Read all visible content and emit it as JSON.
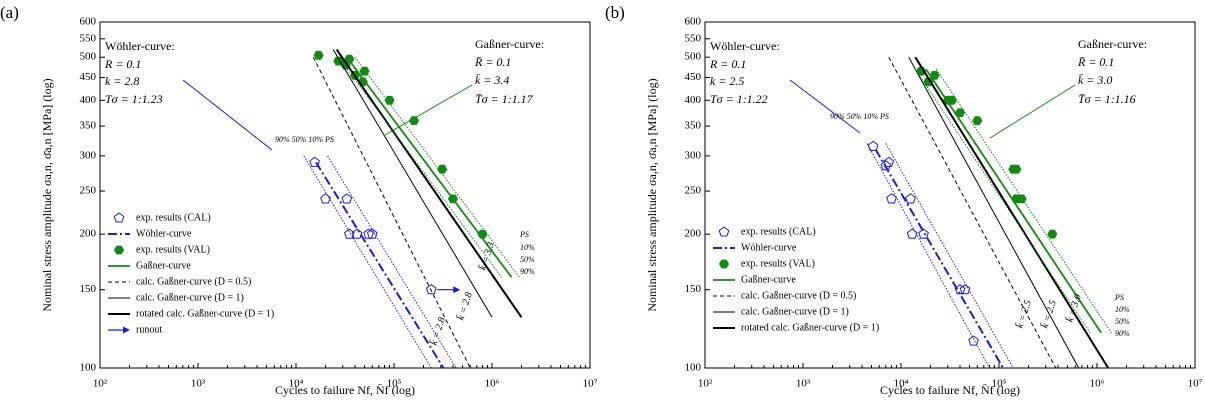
{
  "chart_data": [
    {
      "type": "line",
      "panel_label": "(a)",
      "x_label": "Cycles to failure Nf, N̄f (log)",
      "y_label": "Nominal stress amplitude σa,n, σ̄a,n [MPa] (log)",
      "xscale": "log",
      "yscale": "log",
      "xlim": [
        100,
        10000000
      ],
      "ylim": [
        100,
        600
      ],
      "xticks": [
        {
          "value": 100,
          "label": "10²"
        },
        {
          "value": 1000,
          "label": "10³"
        },
        {
          "value": 10000,
          "label": "10⁴"
        },
        {
          "value": 100000,
          "label": "10⁵"
        },
        {
          "value": 1000000,
          "label": "10⁶"
        },
        {
          "value": 10000000,
          "label": "10⁷"
        }
      ],
      "yticks": [
        100,
        150,
        200,
        250,
        300,
        350,
        400,
        450,
        500,
        550,
        600
      ],
      "series": [
        {
          "name": "exp. results (CAL)",
          "kind": "scatter",
          "marker": "pentagon-open",
          "color": "#1a1ae6",
          "x": [
            15500,
            20000,
            33000,
            35000,
            42000,
            55000,
            60000
          ],
          "values": [
            290,
            240,
            240,
            200,
            200,
            200,
            200
          ]
        },
        {
          "name": "Wöhler-curve",
          "kind": "line",
          "dash": "dashdot",
          "width": 2,
          "color": "#1a1ae6",
          "x": [
            16000,
            320000
          ],
          "values": [
            290,
            100
          ]
        },
        {
          "name": "exp. results (VAL)",
          "kind": "scatter",
          "marker": "hexagon-filled",
          "color": "#138a13",
          "x": [
            17000,
            27000,
            32000,
            35000,
            40000,
            48000,
            50000,
            90000,
            160000,
            310000,
            400000,
            800000
          ],
          "values": [
            505,
            490,
            480,
            495,
            455,
            440,
            465,
            400,
            360,
            280,
            240,
            200
          ]
        },
        {
          "name": "Gaßner-curve",
          "kind": "line",
          "dash": "solid",
          "width": 1.8,
          "color": "#138a13",
          "x": [
            33000,
            1580000
          ],
          "values": [
            500,
            160
          ]
        },
        {
          "name": "calc. Gaßner-curve (D = 0.5)",
          "kind": "line",
          "dash": "dashed",
          "width": 1,
          "color": "#000000",
          "x": [
            15000,
            600000
          ],
          "values": [
            500,
            100
          ]
        },
        {
          "name": "calc. Gaßner-curve (D = 1)",
          "kind": "line",
          "dash": "solid",
          "width": 1,
          "color": "#000000",
          "x": [
            24000,
            1000000
          ],
          "values": [
            520,
            130
          ]
        },
        {
          "name": "rotated calc. Gaßner-curve (D = 1)",
          "kind": "line",
          "dash": "solid",
          "width": 2,
          "color": "#000000",
          "x": [
            26000,
            2000000
          ],
          "values": [
            520,
            130
          ]
        },
        {
          "name": "runout",
          "kind": "scatter",
          "marker": "runout",
          "color": "#1a1ae6",
          "x": [
            240000
          ],
          "values": [
            150
          ]
        },
        {
          "kind": "line",
          "dash": "dotted",
          "width": 1,
          "color": "#1a1ae6",
          "x": [
            12000,
            240000
          ],
          "values": [
            300,
            100
          ]
        },
        {
          "kind": "line",
          "dash": "dotted",
          "width": 1,
          "color": "#1a1ae6",
          "x": [
            21000,
            430000
          ],
          "values": [
            300,
            100
          ]
        },
        {
          "kind": "line",
          "dash": "dotted",
          "width": 1,
          "color": "#138a13",
          "x": [
            27000,
            1250000
          ],
          "values": [
            500,
            160
          ]
        },
        {
          "kind": "line",
          "dash": "dotted",
          "width": 1,
          "color": "#138a13",
          "x": [
            40000,
            1900000
          ],
          "values": [
            500,
            160
          ]
        }
      ],
      "annotations": [
        {
          "text": "Wöhler-curve:",
          "color": "#1a1ae6"
        },
        {
          "text": "R = 0.1",
          "color": "#1a1ae6"
        },
        {
          "text": "k = 2.8",
          "color": "#1a1ae6"
        },
        {
          "text": "Tσ = 1:1.23",
          "color": "#1a1ae6"
        },
        {
          "text": "Gaßner-curve:",
          "color": "#138a13"
        },
        {
          "text": "R̄ = 0.1",
          "color": "#138a13"
        },
        {
          "text": "k̄ = 3.4",
          "color": "#138a13"
        },
        {
          "text": "T̄σ = 1:1.17",
          "color": "#138a13"
        },
        {
          "text": "90% 50% 10% PS",
          "color": "#1a1ae6"
        },
        {
          "text": "PS",
          "color": "#138a13"
        },
        {
          "text": "10%",
          "color": "#138a13"
        },
        {
          "text": "50%",
          "color": "#138a13"
        },
        {
          "text": "90%",
          "color": "#138a13"
        },
        {
          "text": "k̄ = 3.3",
          "color": "#000000"
        },
        {
          "text": "k̄ = 2.8",
          "color": "#000000"
        },
        {
          "text": "k̄ = 2.8",
          "color": "#000000"
        }
      ]
    },
    {
      "type": "line",
      "panel_label": "(b)",
      "x_label": "Cycles to failure Nf, N̄f (log)",
      "y_label": "Nominal stress amplitude σa,n, σ̄a,n [MPa] (log)",
      "xscale": "log",
      "yscale": "log",
      "xlim": [
        100,
        10000000
      ],
      "ylim": [
        100,
        600
      ],
      "xticks": [
        {
          "value": 100,
          "label": "10²"
        },
        {
          "value": 1000,
          "label": "10³"
        },
        {
          "value": 10000,
          "label": "10⁴"
        },
        {
          "value": 100000,
          "label": "10⁵"
        },
        {
          "value": 1000000,
          "label": "10⁶"
        },
        {
          "value": 10000000,
          "label": "10⁷"
        }
      ],
      "yticks": [
        100,
        150,
        200,
        250,
        300,
        350,
        400,
        450,
        500,
        550,
        600
      ],
      "series": [
        {
          "name": "exp. results (CAL)",
          "kind": "scatter",
          "marker": "pentagon-open",
          "color": "#1a1ae6",
          "x": [
            5200,
            7000,
            7500,
            8000,
            12500,
            13000,
            17000,
            40000,
            45000,
            55000
          ],
          "values": [
            315,
            285,
            290,
            240,
            240,
            200,
            200,
            150,
            150,
            115
          ]
        },
        {
          "name": "Wöhler-curve",
          "kind": "line",
          "dash": "dashdot",
          "width": 2,
          "color": "#1a1ae6",
          "x": [
            5500,
            110000
          ],
          "values": [
            310,
            100
          ]
        },
        {
          "name": "exp. results (VAL)",
          "kind": "scatter",
          "marker": "hexagon-filled",
          "color": "#138a13",
          "x": [
            16000,
            19000,
            22000,
            30000,
            33000,
            40000,
            60000,
            140000,
            150000,
            150000,
            170000,
            350000
          ],
          "values": [
            465,
            440,
            455,
            400,
            400,
            375,
            360,
            280,
            280,
            240,
            240,
            200
          ]
        },
        {
          "name": "Gaßner-curve",
          "kind": "line",
          "dash": "solid",
          "width": 1.8,
          "color": "#138a13",
          "x": [
            18000,
            1100000
          ],
          "values": [
            470,
            120
          ]
        },
        {
          "name": "calc. Gaßner-curve (D = 0.5)",
          "kind": "line",
          "dash": "dashed",
          "width": 1,
          "color": "#000000",
          "x": [
            7500,
            380000
          ],
          "values": [
            500,
            100
          ]
        },
        {
          "name": "calc. Gaßner-curve (D = 1)",
          "kind": "line",
          "dash": "solid",
          "width": 1,
          "color": "#000000",
          "x": [
            12000,
            650000
          ],
          "values": [
            500,
            100
          ]
        },
        {
          "name": "rotated calc. Gaßner-curve (D = 1)",
          "kind": "line",
          "dash": "solid",
          "width": 2,
          "color": "#000000",
          "x": [
            14000,
            1300000
          ],
          "values": [
            500,
            100
          ]
        },
        {
          "kind": "line",
          "dash": "dotted",
          "width": 1,
          "color": "#1a1ae6",
          "x": [
            4500,
            80000
          ],
          "values": [
            320,
            100
          ]
        },
        {
          "kind": "line",
          "dash": "dotted",
          "width": 1,
          "color": "#1a1ae6",
          "x": [
            7000,
            140000
          ],
          "values": [
            320,
            100
          ]
        },
        {
          "kind": "line",
          "dash": "dotted",
          "width": 1,
          "color": "#138a13",
          "x": [
            14000,
            850000
          ],
          "values": [
            470,
            120
          ]
        },
        {
          "kind": "line",
          "dash": "dotted",
          "width": 1,
          "color": "#138a13",
          "x": [
            23000,
            1400000
          ],
          "values": [
            470,
            120
          ]
        }
      ],
      "annotations": [
        {
          "text": "Wöhler-curve:",
          "color": "#1a1ae6"
        },
        {
          "text": "R = 0.1",
          "color": "#1a1ae6"
        },
        {
          "text": "k = 2.5",
          "color": "#1a1ae6"
        },
        {
          "text": "Tσ = 1:1.22",
          "color": "#1a1ae6"
        },
        {
          "text": "Gaßner-curve:",
          "color": "#138a13"
        },
        {
          "text": "R̄ = 0.1",
          "color": "#138a13"
        },
        {
          "text": "k̄ = 3.0",
          "color": "#138a13"
        },
        {
          "text": "T̄σ = 1:1.16",
          "color": "#138a13"
        },
        {
          "text": "90% 50% 10% PS",
          "color": "#1a1ae6"
        },
        {
          "text": "PS",
          "color": "#138a13"
        },
        {
          "text": "10%",
          "color": "#138a13"
        },
        {
          "text": "50%",
          "color": "#138a13"
        },
        {
          "text": "90%",
          "color": "#138a13"
        },
        {
          "text": "k̄ = 2.5",
          "color": "#000000"
        },
        {
          "text": "k̄ = 2.5",
          "color": "#000000"
        },
        {
          "text": "k̄ = 3.0",
          "color": "#000000"
        }
      ]
    }
  ]
}
